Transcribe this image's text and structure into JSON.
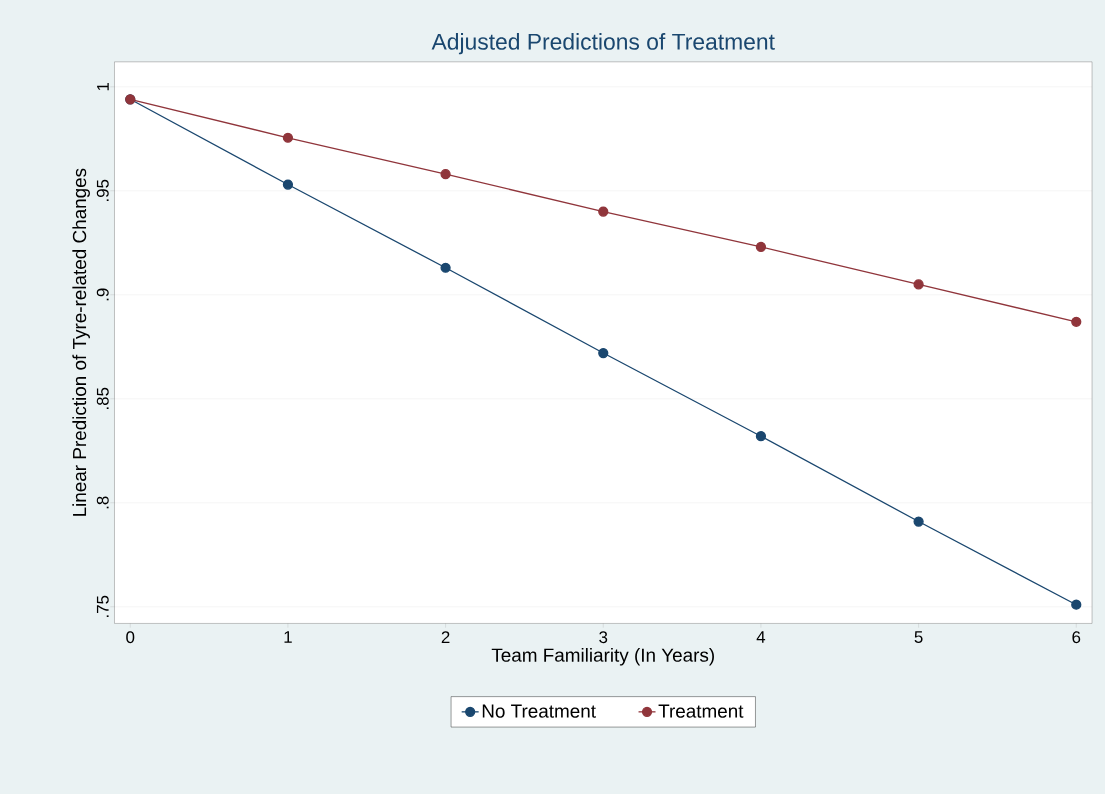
{
  "chart_data": {
    "type": "line",
    "title": "Adjusted Predictions of Treatment",
    "xlabel": "Team Familiarity (In Years)",
    "ylabel": "Linear Prediction of Tyre-related Changes",
    "x": [
      0,
      1,
      2,
      3,
      4,
      5,
      6
    ],
    "series": [
      {
        "name": "No Treatment",
        "color": "#1a476f",
        "values": [
          0.994,
          0.953,
          0.913,
          0.872,
          0.832,
          0.791,
          0.751
        ]
      },
      {
        "name": "Treatment",
        "color": "#90353b",
        "values": [
          0.994,
          0.9755,
          0.958,
          0.94,
          0.923,
          0.905,
          0.887
        ]
      }
    ],
    "xlim": [
      -0.1,
      6.1
    ],
    "ylim": [
      0.742,
      1.012
    ],
    "xticks": [
      0,
      1,
      2,
      3,
      4,
      5,
      6
    ],
    "yticks": [
      {
        "value": 0.75,
        "label": ".75"
      },
      {
        "value": 0.8,
        "label": ".8"
      },
      {
        "value": 0.85,
        "label": ".85"
      },
      {
        "value": 0.9,
        "label": ".9"
      },
      {
        "value": 0.95,
        "label": ".95"
      },
      {
        "value": 1,
        "label": "1"
      }
    ],
    "grid": "y",
    "legend": "bottom",
    "marker": "circle",
    "line_style": "solid"
  }
}
